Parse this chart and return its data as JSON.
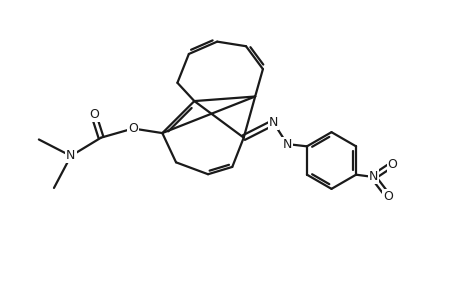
{
  "background_color": "#ffffff",
  "line_color": "#1a1a1a",
  "line_width": 1.6,
  "figsize": [
    4.6,
    3.0
  ],
  "dpi": 100,
  "xlim": [
    0,
    10
  ],
  "ylim": [
    0,
    6.5
  ]
}
